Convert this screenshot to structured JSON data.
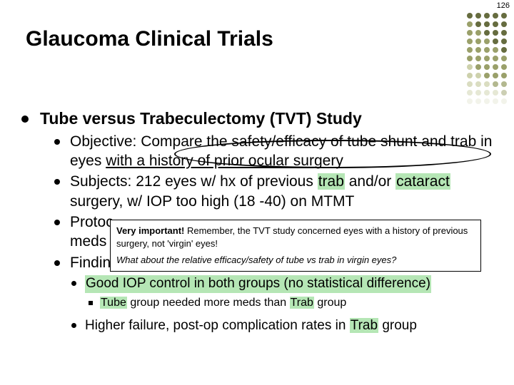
{
  "page_number": "126",
  "title": "Glaucoma Clinical Trials",
  "heading": "Tube versus Trabeculectomy (TVT) Study",
  "bullets": {
    "objective_pre": "Objective: Compare the safety/efficacy of tube shunt and trab in eyes ",
    "objective_ul": "with a history of prior ocular surgery",
    "subjects_a": "Subjects: 212 eyes w/ hx of previous ",
    "subjects_trab": "trab",
    "subjects_b": " and/or ",
    "subjects_cat": "cataract",
    "subjects_c": " surgery, w/ IOP too high (18 -40) on MTMT",
    "protocol": "Protocol: Randomized to tube shunt vs trab-MMC ± meds",
    "protocol_visible": "Protoc",
    "meds_visible": "meds",
    "findings_visible": "Findin",
    "good_iop": "Good IOP control in both groups (no statistical difference)",
    "tube_a": "Tube",
    "tube_b": " group needed more meds than ",
    "tube_c": "Trab",
    "tube_d": " group",
    "higher_a": "Higher failure, post-op complication rates in ",
    "higher_b": "Trab",
    "higher_c": " group"
  },
  "note": {
    "l1a": "Very important!",
    "l1b": " Remember, the TVT study concerned eyes with a history of previous surgery, not 'virgin' eyes!",
    "l2": "What about the relative efficacy/safety of tube vs trab in virgin eyes?"
  },
  "colors": {
    "dot_dark": "#666c3f",
    "dot_mid": "#9aa06a",
    "dot_light": "#cdd1ac"
  }
}
